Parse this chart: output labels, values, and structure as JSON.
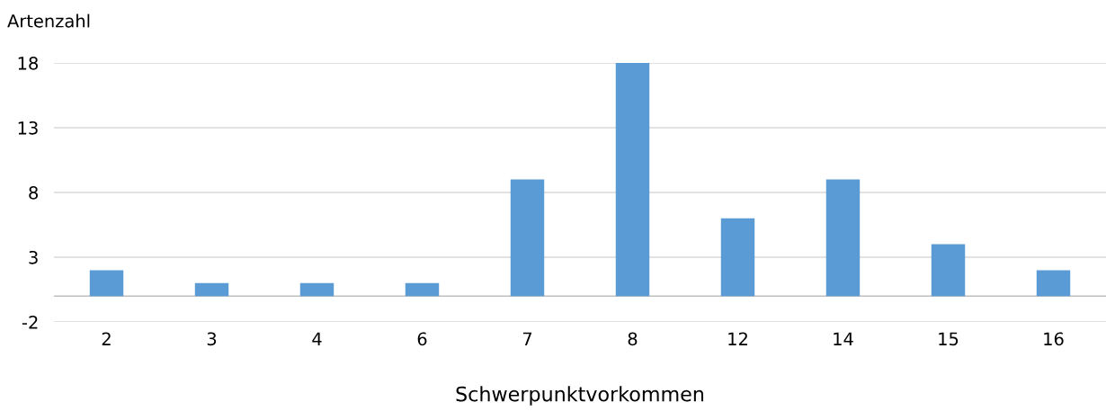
{
  "chart_data": {
    "type": "bar",
    "ylabel": "Artenzahl",
    "xlabel": "Schwerpunktvorkommen",
    "categories": [
      "2",
      "3",
      "4",
      "6",
      "7",
      "8",
      "12",
      "14",
      "15",
      "16"
    ],
    "values": [
      2,
      1,
      1,
      1,
      9,
      18,
      6,
      9,
      4,
      2
    ],
    "color": "#5b9bd5",
    "ylim": [
      -2,
      18
    ],
    "yticks": [
      -2,
      3,
      8,
      13,
      18
    ],
    "grid": "y",
    "legend": false
  }
}
